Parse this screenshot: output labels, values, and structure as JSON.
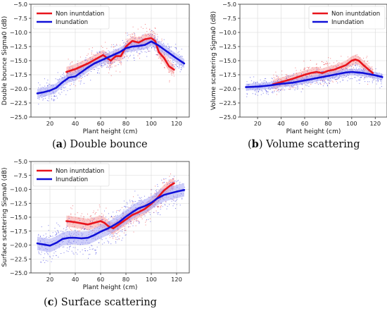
{
  "colors": {
    "non_inundation": "#e8141c",
    "inundation": "#1010d8",
    "non_inundation_band": "#f6a0a0",
    "inundation_band": "#a8a8f4",
    "grid": "#d8d8d8"
  },
  "captions": [
    {
      "letter": "a",
      "text": "Double bounce"
    },
    {
      "letter": "b",
      "text": "Volume scattering"
    },
    {
      "letter": "c",
      "text": "Surface scattering"
    }
  ],
  "chart_data": [
    {
      "type": "line",
      "panel": "a",
      "xlabel": "Plant height (cm)",
      "ylabel": "Double bounce Sigma0 (dB)",
      "xlim": [
        5,
        130
      ],
      "ylim": [
        -25,
        -5
      ],
      "xticks": [
        20,
        40,
        60,
        80,
        100,
        120
      ],
      "yticks": [
        -25.0,
        -22.5,
        -20.0,
        -17.5,
        -15.0,
        -12.5,
        -10.0,
        -7.5,
        -5.0
      ],
      "ytick_labels": [
        "−25.0",
        "−22.5",
        "−20.0",
        "−17.5",
        "−15.0",
        "−12.5",
        "−10.0",
        "−7.5",
        "−5.0"
      ],
      "grid": true,
      "legend_position": "top-left",
      "series": [
        {
          "name": "Non inuntdation",
          "color_key": "non_inundation",
          "x": [
            33,
            40,
            50,
            58,
            62,
            65,
            68,
            72,
            76,
            80,
            85,
            90,
            95,
            100,
            103,
            106,
            110,
            114,
            118
          ],
          "y": [
            -17.0,
            -16.5,
            -15.5,
            -14.5,
            -14.0,
            -14.5,
            -15.0,
            -14.2,
            -14.2,
            -12.5,
            -11.5,
            -11.8,
            -11.2,
            -11.0,
            -11.5,
            -13.5,
            -14.5,
            -16.0,
            -16.6
          ],
          "band": 0.9
        },
        {
          "name": "Inundation",
          "color_key": "inundation",
          "x": [
            10,
            15,
            20,
            25,
            30,
            35,
            40,
            45,
            50,
            55,
            60,
            65,
            70,
            75,
            80,
            85,
            90,
            95,
            100,
            105,
            110,
            115,
            120,
            126
          ],
          "y": [
            -20.8,
            -20.6,
            -20.3,
            -19.8,
            -18.8,
            -18.0,
            -17.8,
            -17.0,
            -16.2,
            -15.5,
            -15.0,
            -14.5,
            -14.0,
            -13.5,
            -12.8,
            -12.5,
            -12.4,
            -12.2,
            -11.6,
            -12.2,
            -13.0,
            -13.8,
            -14.6,
            -15.5
          ],
          "band": 0.8
        }
      ]
    },
    {
      "type": "line",
      "panel": "b",
      "xlabel": "Plant height (cm)",
      "ylabel": "Volume scattering Sigma0 (dB)",
      "xlim": [
        5,
        130
      ],
      "ylim": [
        -25,
        -5
      ],
      "xticks": [
        20,
        40,
        60,
        80,
        100,
        120
      ],
      "yticks": [
        -25.0,
        -22.5,
        -20.0,
        -17.5,
        -15.0,
        -12.5,
        -10.0,
        -7.5,
        -5.0
      ],
      "ytick_labels": [
        "−25.0",
        "−22.5",
        "−20.0",
        "−17.5",
        "−15.0",
        "−12.5",
        "−10.0",
        "−7.5",
        "−5.0"
      ],
      "grid": true,
      "legend_position": "top-right",
      "series": [
        {
          "name": "Non inuntdation",
          "color_key": "non_inundation",
          "x": [
            33,
            40,
            50,
            60,
            65,
            70,
            75,
            80,
            85,
            90,
            95,
            100,
            103,
            106,
            110,
            115,
            118
          ],
          "y": [
            -19.2,
            -18.8,
            -18.2,
            -17.5,
            -17.2,
            -17.0,
            -17.2,
            -16.8,
            -16.6,
            -16.2,
            -15.8,
            -15.0,
            -14.8,
            -15.0,
            -15.8,
            -16.7,
            -17.2
          ],
          "band": 0.8
        },
        {
          "name": "Inundation",
          "color_key": "inundation",
          "x": [
            10,
            20,
            30,
            40,
            50,
            60,
            70,
            80,
            90,
            95,
            100,
            105,
            110,
            115,
            120,
            126
          ],
          "y": [
            -19.7,
            -19.6,
            -19.4,
            -19.1,
            -18.9,
            -18.5,
            -18.1,
            -17.7,
            -17.3,
            -17.1,
            -17.0,
            -17.1,
            -17.2,
            -17.4,
            -17.6,
            -17.9
          ],
          "band": 0.6
        }
      ]
    },
    {
      "type": "line",
      "panel": "c",
      "xlabel": "Plant height (cm)",
      "ylabel": "Surface scattering Sigma0 (dB)",
      "xlim": [
        5,
        130
      ],
      "ylim": [
        -25,
        -5
      ],
      "xticks": [
        20,
        40,
        60,
        80,
        100,
        120
      ],
      "yticks": [
        -25.0,
        -22.5,
        -20.0,
        -17.5,
        -15.0,
        -12.5,
        -10.0,
        -7.5,
        -5.0
      ],
      "ytick_labels": [
        "−25.0",
        "−22.5",
        "−20.0",
        "−17.5",
        "−15.0",
        "−12.5",
        "−10.0",
        "−7.5",
        "−5.0"
      ],
      "grid": true,
      "legend_position": "top-left",
      "series": [
        {
          "name": "Non inuntdation",
          "color_key": "non_inundation",
          "x": [
            33,
            40,
            50,
            55,
            60,
            63,
            66,
            70,
            75,
            80,
            85,
            90,
            95,
            100,
            105,
            110,
            115,
            118
          ],
          "y": [
            -15.7,
            -15.9,
            -16.3,
            -16.0,
            -15.7,
            -16.0,
            -16.6,
            -17.0,
            -16.2,
            -15.4,
            -14.6,
            -14.1,
            -13.5,
            -12.6,
            -11.5,
            -10.2,
            -9.3,
            -8.9
          ],
          "band": 1.0
        },
        {
          "name": "Inundation",
          "color_key": "inundation",
          "x": [
            10,
            15,
            20,
            25,
            30,
            35,
            40,
            45,
            50,
            55,
            60,
            65,
            70,
            75,
            80,
            85,
            90,
            95,
            100,
            105,
            110,
            115,
            120,
            126
          ],
          "y": [
            -19.7,
            -19.9,
            -20.1,
            -19.6,
            -18.9,
            -18.7,
            -18.7,
            -18.8,
            -18.7,
            -18.2,
            -17.6,
            -17.1,
            -16.5,
            -15.8,
            -14.9,
            -14.1,
            -13.4,
            -13.0,
            -12.4,
            -11.6,
            -11.0,
            -10.7,
            -10.4,
            -10.1
          ],
          "band": 1.2
        }
      ]
    }
  ]
}
